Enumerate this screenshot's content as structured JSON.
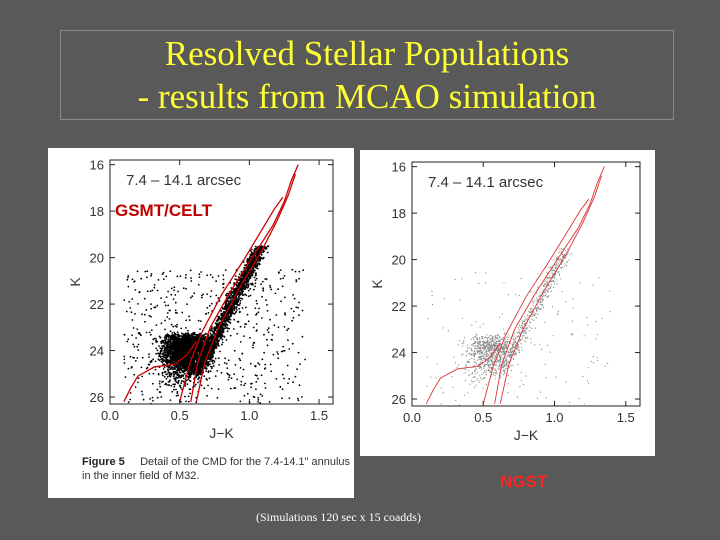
{
  "slide": {
    "title_line1": "Resolved Stellar Populations",
    "title_line2": "- results from MCAO simulation",
    "title_color": "#ffff33",
    "background_color": "#595959"
  },
  "left_panel": {
    "annulus_label": "7.4 – 14.1 arcsec",
    "telescope_label": "GSMT/CELT",
    "caption_figure": "Figure 5",
    "caption_text": "Detail of the CMD for the 7.4-14.1\" annulus in the inner field of M32."
  },
  "right_panel": {
    "annulus_label": "7.4 – 14.1 arcsec",
    "telescope_label": "NGST"
  },
  "footer_note": "(Simulations 120 sec x 15 coadds)",
  "chart_data": [
    {
      "type": "scatter",
      "title": "7.4 – 14.1 arcsec",
      "xlabel": "J−K",
      "ylabel": "K",
      "xlim": [
        0.0,
        1.6
      ],
      "ylim": [
        26.3,
        15.8
      ],
      "xticks": [
        "0.0",
        "0.5",
        "1.0",
        "1.5"
      ],
      "yticks": [
        "16",
        "18",
        "20",
        "22",
        "24",
        "26"
      ],
      "xtick_values": [
        0.0,
        0.5,
        1.0,
        1.5
      ],
      "ytick_values": [
        16,
        18,
        20,
        22,
        24,
        26
      ],
      "series": [
        {
          "name": "",
          "color": "#000000",
          "density": "high"
        },
        {
          "name": "",
          "color": "#cc0000"
        }
      ]
    },
    {
      "type": "scatter",
      "title": "7.4 – 14.1 arcsec",
      "xlabel": "J−K",
      "ylabel": "K",
      "xlim": [
        0.0,
        1.6
      ],
      "ylim": [
        26.3,
        15.8
      ],
      "xticks": [
        "0.0",
        "0.5",
        "1.0",
        "1.5"
      ],
      "yticks": [
        "16",
        "18",
        "20",
        "22",
        "24",
        "26"
      ],
      "xtick_values": [
        0.0,
        0.5,
        1.0,
        1.5
      ],
      "ytick_values": [
        16,
        18,
        20,
        22,
        24,
        26
      ],
      "series": [
        {
          "name": "",
          "color": "#888888",
          "density": "low"
        },
        {
          "name": "",
          "color": "#dd3333"
        }
      ]
    }
  ]
}
